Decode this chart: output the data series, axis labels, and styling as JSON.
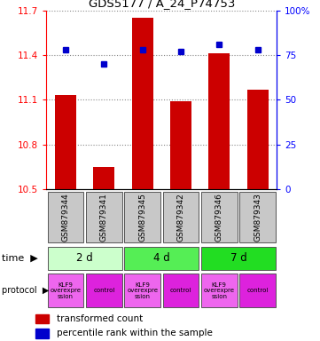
{
  "title": "GDS5177 / A_24_P74753",
  "samples": [
    "GSM879344",
    "GSM879341",
    "GSM879345",
    "GSM879342",
    "GSM879346",
    "GSM879343"
  ],
  "red_values": [
    11.13,
    10.65,
    11.65,
    11.09,
    11.41,
    11.17
  ],
  "blue_values": [
    78,
    70,
    78,
    77,
    81,
    78
  ],
  "ylim_left": [
    10.5,
    11.7
  ],
  "ylim_right": [
    0,
    100
  ],
  "yticks_left": [
    10.5,
    10.8,
    11.1,
    11.4,
    11.7
  ],
  "yticks_right": [
    0,
    25,
    50,
    75,
    100
  ],
  "time_groups": [
    {
      "label": "2 d",
      "cols": [
        0,
        1
      ],
      "color": "#ccffcc"
    },
    {
      "label": "4 d",
      "cols": [
        2,
        3
      ],
      "color": "#55ee55"
    },
    {
      "label": "7 d",
      "cols": [
        4,
        5
      ],
      "color": "#22dd22"
    }
  ],
  "sample_bg_color": "#c8c8c8",
  "bar_color": "#cc0000",
  "dot_color": "#0000cc",
  "legend_red_label": "transformed count",
  "legend_blue_label": "percentile rank within the sample",
  "time_label": "time",
  "protocol_label": "protocol",
  "klf9_color": "#ee66ee",
  "control_color": "#dd22dd",
  "klf9_label": "KLF9\noverexpre\nssion",
  "control_label": "control"
}
